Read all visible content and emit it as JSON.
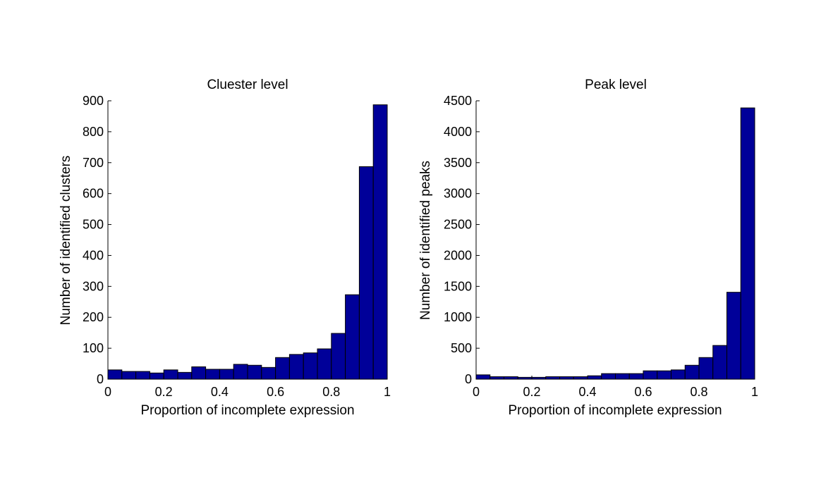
{
  "chart_data": [
    {
      "type": "bar",
      "title": "Cluester level",
      "xlabel": "Proportion of incomplete expression",
      "ylabel": "Number of identified clusters",
      "xlim": [
        0,
        1
      ],
      "ylim": [
        0,
        900
      ],
      "xticks": [
        "0",
        "0.2",
        "0.4",
        "0.6",
        "0.8",
        "1"
      ],
      "yticks": [
        "0",
        "100",
        "200",
        "300",
        "400",
        "500",
        "600",
        "700",
        "800",
        "900"
      ],
      "bin_width": 0.05,
      "bin_starts": [
        0,
        0.05,
        0.1,
        0.15,
        0.2,
        0.25,
        0.3,
        0.35,
        0.4,
        0.45,
        0.5,
        0.55,
        0.6,
        0.65,
        0.7,
        0.75,
        0.8,
        0.85,
        0.9,
        0.95
      ],
      "values": [
        30,
        25,
        25,
        20,
        30,
        22,
        40,
        32,
        32,
        48,
        45,
        38,
        70,
        80,
        85,
        98,
        148,
        273,
        687,
        887
      ],
      "grid": false,
      "bar_color": "#000099"
    },
    {
      "type": "bar",
      "title": "Peak level",
      "xlabel": "Proportion of incomplete expression",
      "ylabel": "Number of identified peaks",
      "xlim": [
        0,
        1
      ],
      "ylim": [
        0,
        4500
      ],
      "xticks": [
        "0",
        "0.2",
        "0.4",
        "0.6",
        "0.8",
        "1"
      ],
      "yticks": [
        "0",
        "500",
        "1000",
        "1500",
        "2000",
        "2500",
        "3000",
        "3500",
        "4000",
        "4500"
      ],
      "bin_width": 0.05,
      "bin_starts": [
        0,
        0.05,
        0.1,
        0.15,
        0.2,
        0.25,
        0.3,
        0.35,
        0.4,
        0.45,
        0.5,
        0.55,
        0.6,
        0.65,
        0.7,
        0.75,
        0.8,
        0.85,
        0.9,
        0.95
      ],
      "values": [
        70,
        40,
        40,
        30,
        30,
        40,
        40,
        40,
        55,
        90,
        90,
        90,
        135,
        135,
        150,
        225,
        350,
        545,
        1405,
        4385
      ],
      "grid": false,
      "bar_color": "#000099"
    }
  ]
}
